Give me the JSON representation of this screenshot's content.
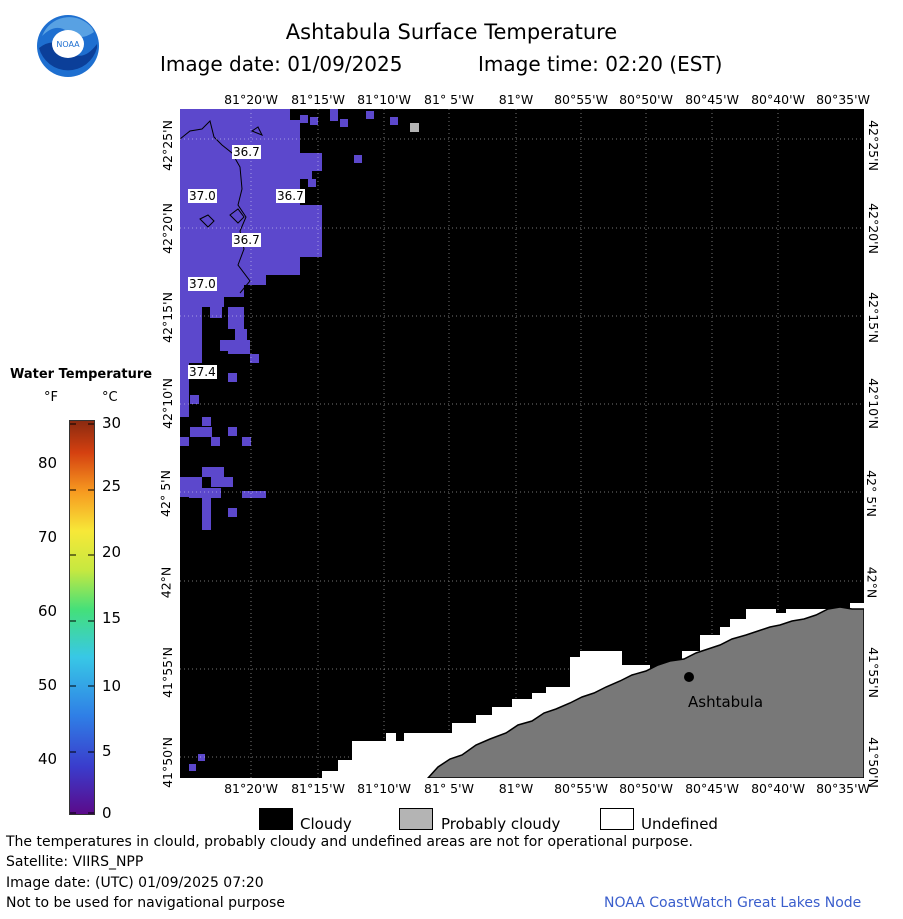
{
  "header": {
    "title": "Ashtabula Surface Temperature",
    "image_date": "Image date: 01/09/2025",
    "image_time": "Image time: 02:20 (EST)",
    "logo_text": "NOAA"
  },
  "axes": {
    "top_longitudes": [
      "81°20'W",
      "81°15'W",
      "81°10'W",
      "81° 5'W",
      "81°W",
      "80°55'W",
      "80°50'W",
      "80°45'W",
      "80°40'W",
      "80°35'W"
    ],
    "bottom_longitudes": [
      "81°20'W",
      "81°15'W",
      "81°10'W",
      "81° 5'W",
      "81°W",
      "80°55'W",
      "80°50'W",
      "80°45'W",
      "80°40'W",
      "80°35'W"
    ],
    "latitudes": [
      "42°25'N",
      "42°20'N",
      "42°15'N",
      "42°10'N",
      "42° 5'N",
      "42°N",
      "41°55'N",
      "41°50'N"
    ]
  },
  "contour_labels": [
    "36.7",
    "37.0",
    "36.7",
    "36.7",
    "37.0",
    "37.4"
  ],
  "city": {
    "name": "Ashtabula"
  },
  "colorbar": {
    "title": "Water Temperature",
    "unit_f": "°F",
    "unit_c": "°C",
    "f_ticks": [
      "80",
      "70",
      "60",
      "50",
      "40"
    ],
    "c_ticks": [
      "30",
      "25",
      "20",
      "15",
      "10",
      "5",
      "0"
    ]
  },
  "legend": {
    "cloudy": "Cloudy",
    "probably_cloudy": "Probably cloudy",
    "undefined": "Undefined"
  },
  "footer": {
    "disclaimer": "The temperatures in clould, probably cloudy and undefined areas are not for operational purpose.",
    "satellite": "Satellite: VIIRS_NPP",
    "utc_date": "Image date: (UTC) 01/09/2025  07:20",
    "nav_warning": "Not to be used for navigational purpose",
    "credit": "NOAA CoastWatch Great Lakes Node"
  },
  "colors": {
    "cloudy": "#000000",
    "probably_cloudy": "#b4b4b4",
    "undefined": "#ffffff",
    "land": "#787878",
    "water_temp": "#5c48cc",
    "credit_link": "#3a5ecc"
  }
}
